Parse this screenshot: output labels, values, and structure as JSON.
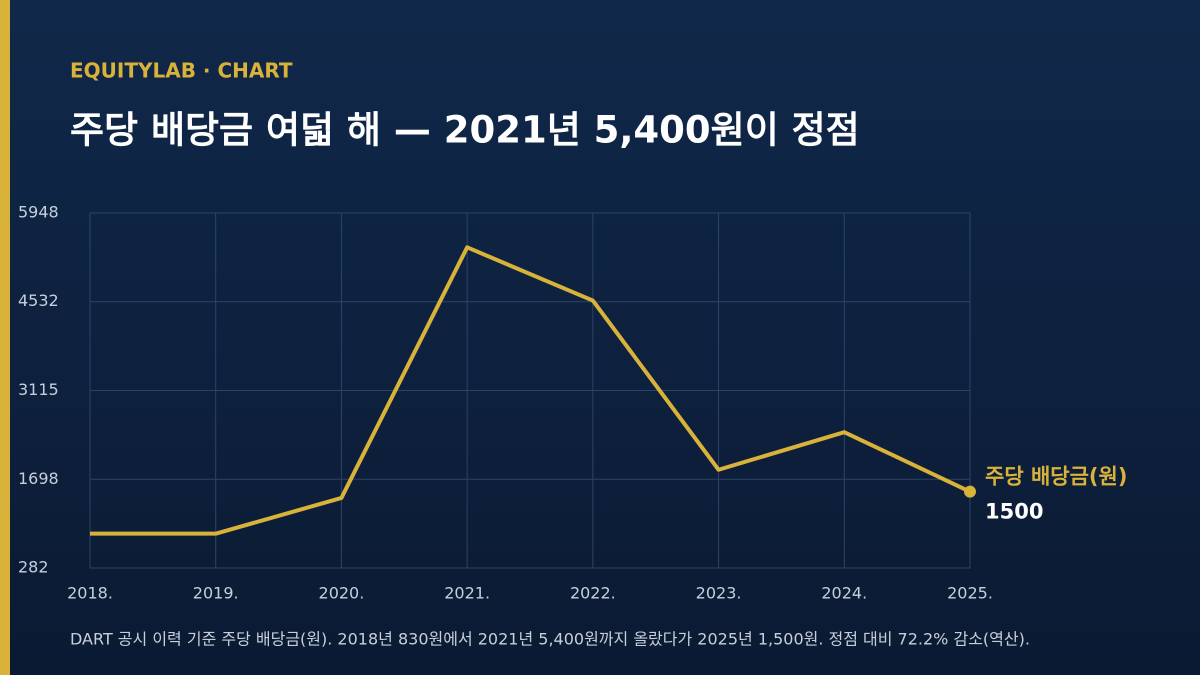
{
  "eyebrow": "EQUITYLAB · CHART",
  "chart_data": {
    "type": "line",
    "title": "주당 배당금 여덟 해 — 2021년 5,400원이 정점",
    "categories": [
      "2018.",
      "2019.",
      "2020.",
      "2021.",
      "2022.",
      "2023.",
      "2024.",
      "2025."
    ],
    "series": [
      {
        "name": "주당 배당금(원)",
        "color": "#d9b23a",
        "values": [
          830,
          830,
          1400,
          5400,
          4550,
          1850,
          2450,
          1500
        ]
      }
    ],
    "ylim": [
      282,
      5948
    ],
    "yticks": [
      282,
      1698,
      3115,
      4532,
      5948
    ],
    "grid": true,
    "caption": "DART 공시 이력 기준 주당 배당금(원). 2018년 830원에서 2021년 5,400원까지 올랐다가 2025년 1,500원. 정점 대비 72.2% 감소(역산)."
  }
}
